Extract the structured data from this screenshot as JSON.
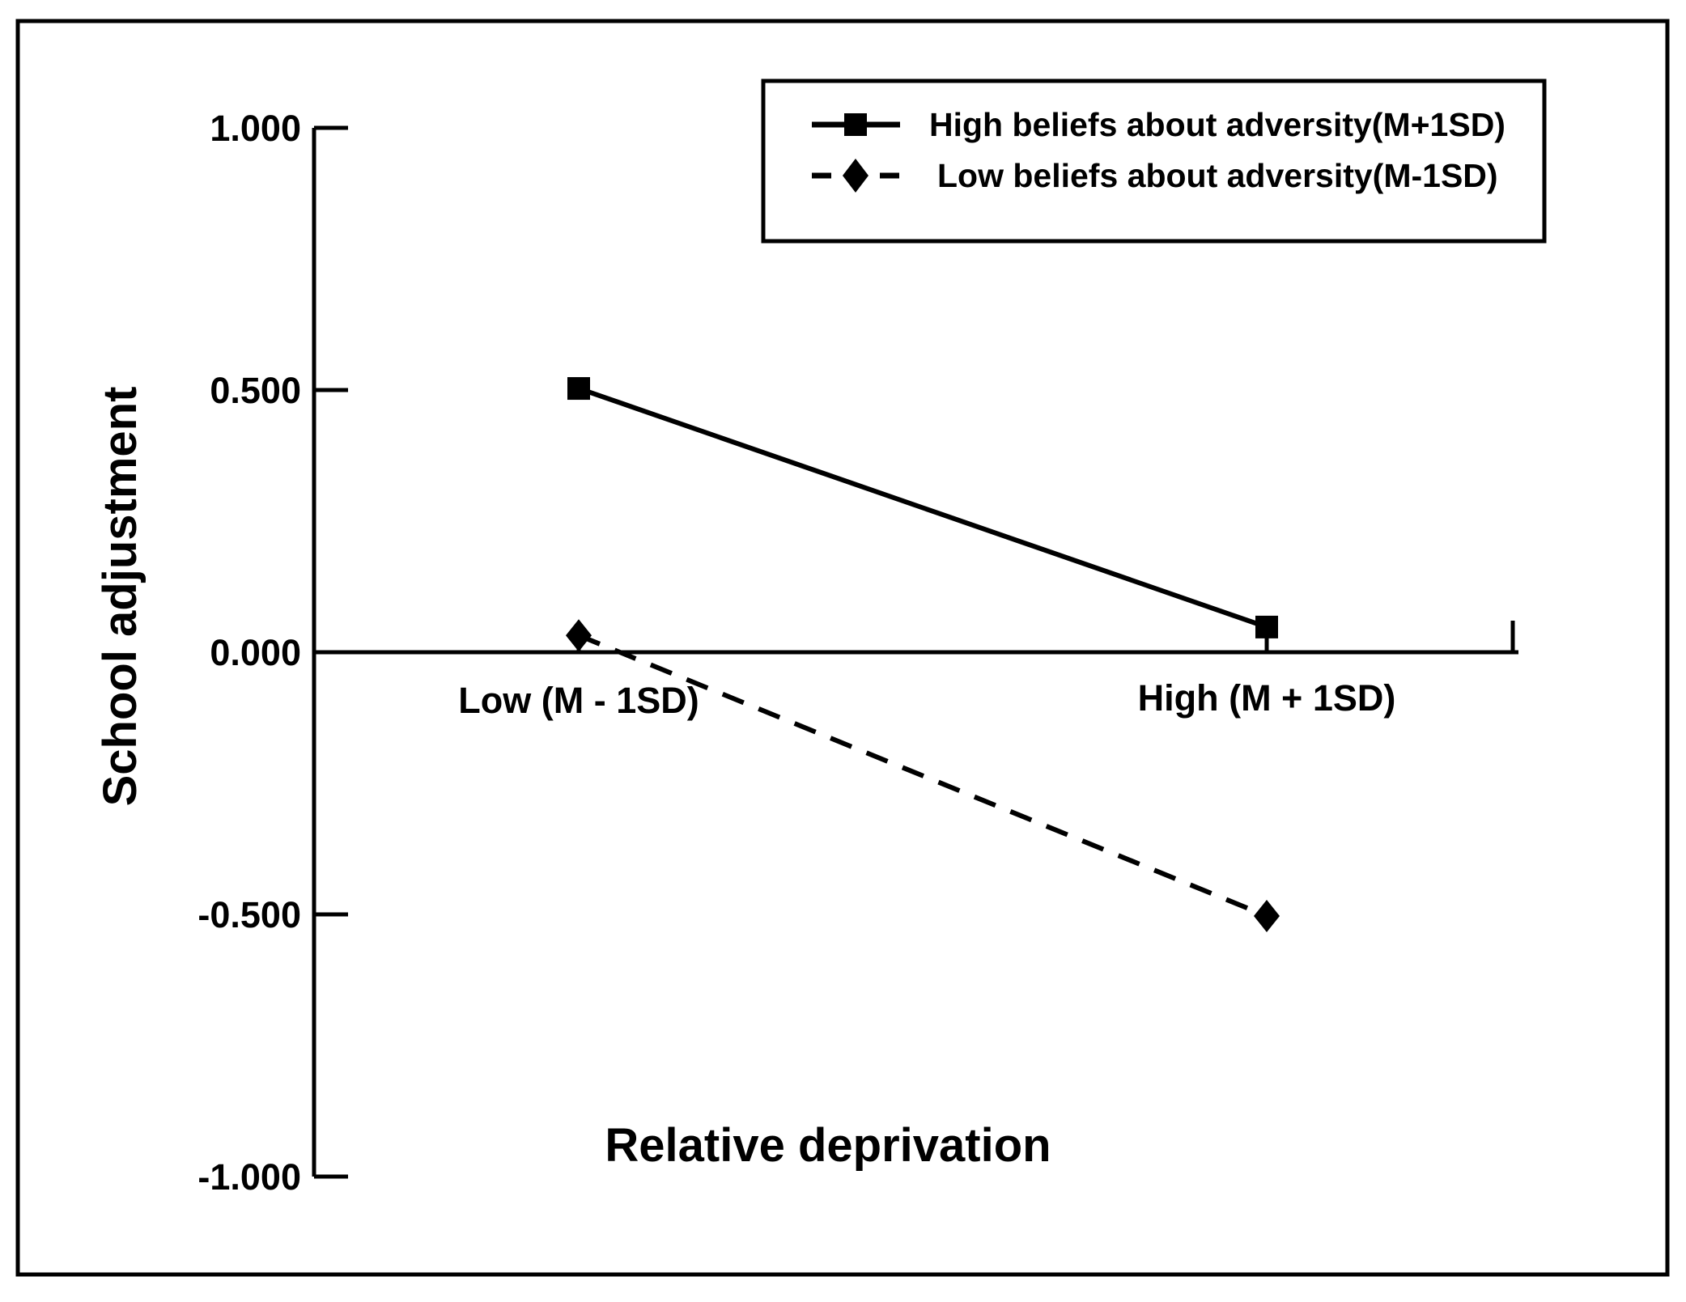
{
  "figure": {
    "background": "#ffffff",
    "frame_color": "#000000",
    "axis_color": "#000000",
    "series_color": "#000000"
  },
  "chart_data": {
    "type": "line",
    "title": "",
    "xlabel": "Relative deprivation",
    "ylabel": "School adjustment",
    "categories": [
      "Low (M - 1SD)",
      "High (M + 1SD)"
    ],
    "series": [
      {
        "name": "High beliefs about adversity(M+1SD)",
        "values": [
          0.503,
          0.048
        ],
        "line_style": "solid",
        "marker": "square"
      },
      {
        "name": "Low beliefs about adversity(M-1SD)",
        "values": [
          0.032,
          -0.503
        ],
        "line_style": "dashed",
        "marker": "diamond"
      }
    ],
    "y_ticks": [
      "1.000",
      "0.500",
      "0.000",
      "-0.500",
      "-1.000"
    ],
    "y_tick_values": [
      1.0,
      0.5,
      0.0,
      -0.5,
      -1.0
    ],
    "ylim": [
      -1.0,
      1.0
    ],
    "grid": false,
    "legend_position": "top-right",
    "zero_line": true
  }
}
